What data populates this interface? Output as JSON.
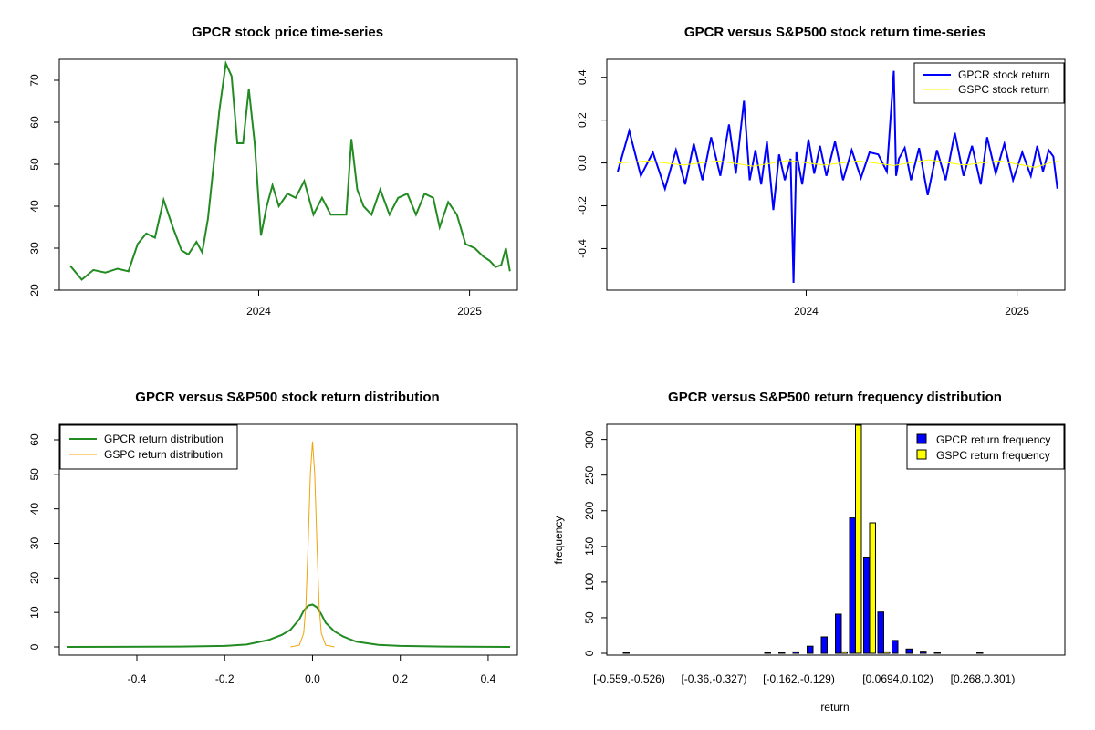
{
  "chart_data": [
    {
      "type": "line",
      "title": "GPCR stock price time-series",
      "xlabel": "",
      "ylabel": "",
      "xticks": [
        "2024",
        "2025"
      ],
      "ylim": [
        20,
        75
      ],
      "yticks": [
        20,
        30,
        40,
        50,
        60,
        70
      ],
      "grid": false,
      "colors": {
        "price": "#228b22"
      },
      "series": [
        {
          "x": [
            "2023-02-08",
            "2023-02-28",
            "2023-03-20",
            "2023-04-10",
            "2023-05-01",
            "2023-05-20",
            "2023-06-05",
            "2023-06-20",
            "2023-07-05",
            "2023-07-20",
            "2023-08-05",
            "2023-08-20",
            "2023-09-01",
            "2023-09-15",
            "2023-09-25",
            "2023-10-05",
            "2023-10-15",
            "2023-10-25",
            "2023-11-05",
            "2023-11-15",
            "2023-11-25",
            "2023-12-05",
            "2023-12-15",
            "2023-12-25",
            "2024-01-05",
            "2024-01-15",
            "2024-01-25",
            "2024-02-05",
            "2024-02-20",
            "2024-03-05",
            "2024-03-20",
            "2024-04-05",
            "2024-04-20",
            "2024-05-05",
            "2024-05-20",
            "2024-06-01",
            "2024-06-10",
            "2024-06-20",
            "2024-07-01",
            "2024-07-15",
            "2024-07-30",
            "2024-08-15",
            "2024-08-30",
            "2024-09-15",
            "2024-09-30",
            "2024-10-15",
            "2024-10-30",
            "2024-11-10",
            "2024-11-25",
            "2024-12-10",
            "2024-12-25",
            "2025-01-10",
            "2025-01-25",
            "2025-02-05",
            "2025-02-15",
            "2025-02-25",
            "2025-03-05",
            "2025-03-12"
          ],
          "values": [
            25.8,
            22.5,
            24.8,
            24.2,
            25.1,
            24.5,
            31,
            33.5,
            32.5,
            41.5,
            35,
            29.5,
            28.5,
            31.5,
            29,
            37,
            50,
            63,
            74,
            71,
            55,
            55,
            68,
            55,
            33,
            40,
            45,
            40,
            43,
            42,
            46,
            38,
            42,
            38,
            38,
            38,
            56,
            44,
            40,
            38,
            44,
            38,
            42,
            43,
            38,
            43,
            42,
            35,
            41,
            38,
            31,
            30,
            28,
            27,
            25.5,
            26,
            30,
            24.5
          ]
        }
      ]
    },
    {
      "type": "line",
      "title": "GPCR versus S&P500 stock return time-series",
      "xlabel": "",
      "ylabel": "",
      "xticks": [
        "2024",
        "2025"
      ],
      "ylim": [
        -0.56,
        0.45
      ],
      "yticks": [
        -0.4,
        -0.2,
        0.0,
        0.2,
        0.4
      ],
      "ytick_labels": [
        "-0.4",
        "-0.2",
        "0.0",
        "0.2",
        "0.4"
      ],
      "legend": "top-right",
      "grid": false,
      "series": [
        {
          "name": "GPCR stock return",
          "color": "#0000ff",
          "x": [
            "2023-02-08",
            "2023-02-28",
            "2023-03-20",
            "2023-04-10",
            "2023-05-01",
            "2023-05-20",
            "2023-06-05",
            "2023-06-20",
            "2023-07-05",
            "2023-07-20",
            "2023-08-05",
            "2023-08-20",
            "2023-09-01",
            "2023-09-15",
            "2023-09-25",
            "2023-10-05",
            "2023-10-15",
            "2023-10-25",
            "2023-11-05",
            "2023-11-15",
            "2023-11-25",
            "2023-12-05",
            "2023-12-10",
            "2023-12-15",
            "2023-12-25",
            "2024-01-05",
            "2024-01-15",
            "2024-01-25",
            "2024-02-05",
            "2024-02-20",
            "2024-03-05",
            "2024-03-20",
            "2024-04-05",
            "2024-04-20",
            "2024-05-05",
            "2024-05-20",
            "2024-06-01",
            "2024-06-05",
            "2024-06-10",
            "2024-06-20",
            "2024-07-01",
            "2024-07-15",
            "2024-07-30",
            "2024-08-15",
            "2024-08-30",
            "2024-09-15",
            "2024-09-30",
            "2024-10-15",
            "2024-10-30",
            "2024-11-10",
            "2024-11-25",
            "2024-12-10",
            "2024-12-25",
            "2025-01-10",
            "2025-01-25",
            "2025-02-05",
            "2025-02-15",
            "2025-02-25",
            "2025-03-05",
            "2025-03-12"
          ],
          "values": [
            -0.04,
            0.15,
            -0.06,
            0.05,
            -0.12,
            0.06,
            -0.1,
            0.09,
            -0.08,
            0.12,
            -0.06,
            0.18,
            -0.05,
            0.29,
            -0.08,
            0.06,
            -0.1,
            0.1,
            -0.22,
            0.04,
            -0.08,
            0.02,
            -0.56,
            0.05,
            -0.1,
            0.11,
            -0.05,
            0.08,
            -0.06,
            0.1,
            -0.08,
            0.06,
            -0.07,
            0.05,
            0.04,
            -0.04,
            0.43,
            -0.06,
            0.02,
            0.07,
            -0.08,
            0.07,
            -0.15,
            0.06,
            -0.08,
            0.14,
            -0.06,
            0.08,
            -0.1,
            0.12,
            -0.05,
            0.09,
            -0.08,
            0.05,
            -0.06,
            0.08,
            -0.04,
            0.06,
            0.03,
            -0.12
          ]
        },
        {
          "name": "GSPC stock return",
          "color": "#ffff00",
          "x": [
            "2023-02-08",
            "2023-04-01",
            "2023-06-01",
            "2023-08-01",
            "2023-10-01",
            "2023-12-01",
            "2024-02-01",
            "2024-04-01",
            "2024-06-01",
            "2024-08-01",
            "2024-10-01",
            "2024-12-01",
            "2025-02-01",
            "2025-03-12"
          ],
          "values": [
            0.0,
            0.01,
            -0.01,
            0.01,
            -0.015,
            0.012,
            -0.01,
            0.01,
            -0.012,
            0.015,
            -0.01,
            0.01,
            -0.02,
            0.01
          ]
        }
      ]
    },
    {
      "type": "line",
      "title": "GPCR versus S&P500 stock return distribution",
      "xlabel": "",
      "ylabel": "",
      "xlim": [
        -0.56,
        0.45
      ],
      "ylim": [
        0,
        62
      ],
      "xticks": [
        -0.4,
        -0.2,
        0.0,
        0.2,
        0.4
      ],
      "xtick_labels": [
        "-0.4",
        "-0.2",
        "0.0",
        "0.2",
        "0.4"
      ],
      "yticks": [
        0,
        10,
        20,
        30,
        40,
        50,
        60
      ],
      "legend": "top-left",
      "grid": false,
      "series": [
        {
          "name": "GPCR return distribution",
          "color": "#228b22",
          "x": [
            -0.56,
            -0.3,
            -0.2,
            -0.15,
            -0.1,
            -0.07,
            -0.05,
            -0.03,
            -0.02,
            -0.01,
            0.0,
            0.01,
            0.02,
            0.03,
            0.05,
            0.07,
            0.1,
            0.15,
            0.2,
            0.3,
            0.45
          ],
          "values": [
            0,
            0.1,
            0.3,
            0.7,
            2,
            3.5,
            5,
            8,
            10.5,
            12,
            12.3,
            11.5,
            9.5,
            7,
            4.5,
            3,
            1.5,
            0.6,
            0.3,
            0.1,
            0
          ]
        },
        {
          "name": "GSPC return distribution",
          "color": "#f0a30a",
          "x": [
            -0.05,
            -0.03,
            -0.02,
            -0.015,
            -0.01,
            -0.005,
            0.0,
            0.005,
            0.01,
            0.015,
            0.02,
            0.03,
            0.05
          ],
          "values": [
            0,
            0.5,
            4,
            12,
            30,
            50,
            59.5,
            50,
            30,
            12,
            4,
            0.5,
            0
          ]
        }
      ]
    },
    {
      "type": "bar",
      "title": "GPCR versus S&P500 return frequency distribution",
      "xlabel": "return",
      "ylabel": "frequency",
      "ylim": [
        0,
        320
      ],
      "yticks": [
        0,
        50,
        100,
        150,
        200,
        250,
        300
      ],
      "legend": "top-right",
      "grid": false,
      "categories": [
        "[-0.559,-0.526)",
        "[-0.526,-0.492)",
        "[-0.492,-0.459)",
        "[-0.459,-0.426)",
        "[-0.426,-0.393)",
        "[-0.393,-0.36)",
        "[-0.36,-0.327)",
        "[-0.327,-0.294)",
        "[-0.294,-0.261)",
        "[-0.261,-0.228)",
        "[-0.228,-0.195)",
        "[-0.195,-0.162)",
        "[-0.162,-0.129)",
        "[-0.129,-0.0964)",
        "[-0.0964,-0.0633)",
        "[-0.0633,-0.0302)",
        "[-0.0302,0.00293)",
        "[0.00293,0.0361)",
        "[0.0361,0.0694)",
        "[0.0694,0.102)",
        "[0.102,0.135)",
        "[0.135,0.168)",
        "[0.168,0.201)",
        "[0.201,0.235)",
        "[0.235,0.268)",
        "[0.268,0.301)",
        "[0.301,0.334)",
        "[0.334,0.367)",
        "[0.367,0.4)",
        "[0.4,0.433)"
      ],
      "visible_category_labels": [
        "[-0.559,-0.526)",
        "[-0.36,-0.327)",
        "[-0.162,-0.129)",
        "[0.0694,0.102)",
        "[0.268,0.301)"
      ],
      "series": [
        {
          "name": "GPCR return frequency",
          "color": "#0000ff",
          "values": [
            1,
            0,
            0,
            0,
            0,
            0,
            0,
            0,
            0,
            0,
            1,
            1,
            2,
            10,
            23,
            55,
            190,
            135,
            58,
            18,
            6,
            3,
            1,
            0,
            0,
            1,
            0,
            0,
            0,
            0
          ]
        },
        {
          "name": "GSPC return frequency",
          "color": "#ffff00",
          "values": [
            0,
            0,
            0,
            0,
            0,
            0,
            0,
            0,
            0,
            0,
            0,
            0,
            0,
            0,
            0,
            2,
            320,
            183,
            2,
            0,
            0,
            0,
            0,
            0,
            0,
            0,
            0,
            0,
            0,
            0
          ]
        }
      ]
    }
  ]
}
